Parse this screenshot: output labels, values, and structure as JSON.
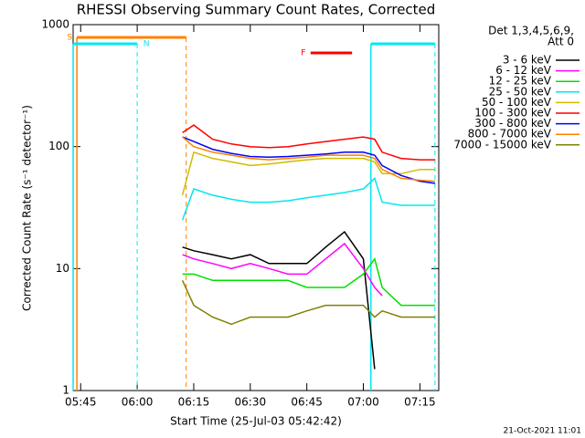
{
  "chart_data": {
    "type": "line",
    "title": "RHESSI Observing Summary Count Rates, Corrected",
    "x_label": "Start Time (25-Jul-03 05:42:42)",
    "y_label": "Corrected Count Rate (s⁻¹ detector⁻¹)",
    "legend_title": [
      "Det 1,3,4,5,6,9,",
      "Att 0"
    ],
    "footer": "21-Oct-2021 11:01",
    "log_y": true,
    "legend": "outside-right",
    "xlim": [
      "05:43",
      "07:20"
    ],
    "xticks": [
      "05:45",
      "06:00",
      "06:15",
      "06:30",
      "06:45",
      "07:00",
      "07:15"
    ],
    "ylim": [
      1,
      1000
    ],
    "yticks": [
      1,
      10,
      100,
      1000
    ],
    "x": [
      "06:12",
      "06:15",
      "06:20",
      "06:25",
      "06:30",
      "06:35",
      "06:40",
      "06:45",
      "06:50",
      "06:55",
      "07:00",
      "07:03",
      "07:05",
      "07:10",
      "07:15",
      "07:19"
    ],
    "series": [
      {
        "name": "3 - 6 keV",
        "color": "#000000",
        "values": [
          15,
          14,
          13,
          12,
          13,
          11,
          11,
          11,
          15,
          20,
          12,
          1.5,
          null,
          null,
          null,
          null
        ]
      },
      {
        "name": "6 - 12 keV",
        "color": "#ff00ff",
        "values": [
          13,
          12,
          11,
          10,
          11,
          10,
          9,
          9,
          12,
          16,
          10,
          7,
          6,
          null,
          null,
          null
        ]
      },
      {
        "name": "12 - 25 keV",
        "color": "#00e000",
        "values": [
          9,
          9,
          8,
          8,
          8,
          8,
          8,
          7,
          7,
          7,
          9,
          12,
          7,
          5,
          5,
          5
        ]
      },
      {
        "name": "25 - 50 keV",
        "color": "#00e8f0",
        "values": [
          25,
          45,
          40,
          37,
          35,
          35,
          36,
          38,
          40,
          42,
          45,
          55,
          35,
          33,
          33,
          33
        ]
      },
      {
        "name": "50 - 100 keV",
        "color": "#d0bc00",
        "values": [
          40,
          90,
          80,
          75,
          70,
          72,
          75,
          78,
          80,
          80,
          80,
          75,
          60,
          60,
          65,
          65
        ]
      },
      {
        "name": "100 - 300 keV",
        "color": "#ff0000",
        "values": [
          130,
          150,
          115,
          105,
          100,
          98,
          100,
          105,
          110,
          115,
          120,
          115,
          90,
          80,
          78,
          78
        ]
      },
      {
        "name": "300 - 800 keV",
        "color": "#0000ff",
        "values": [
          120,
          110,
          95,
          88,
          83,
          82,
          83,
          85,
          87,
          90,
          90,
          85,
          70,
          58,
          52,
          50
        ]
      },
      {
        "name": "800 - 7000 keV",
        "color": "#ff8000",
        "values": [
          120,
          100,
          90,
          85,
          80,
          78,
          80,
          82,
          85,
          85,
          85,
          80,
          65,
          55,
          53,
          52
        ]
      },
      {
        "name": "7000 - 15000 keV",
        "color": "#808000",
        "values": [
          8,
          5,
          4,
          3.5,
          4,
          4,
          4,
          4.5,
          5,
          5,
          5,
          4,
          4.5,
          4,
          4,
          4
        ]
      }
    ],
    "intervals": [
      {
        "label": "S",
        "color": "#ff8000",
        "start": "05:44",
        "end": "06:13",
        "lines": true
      },
      {
        "label": "N",
        "color": "#00e8f0",
        "start": "05:43",
        "end": "06:00",
        "lines": true
      },
      {
        "label": null,
        "color": "#00e8f0",
        "start": "07:02",
        "end": "07:19",
        "lines": true
      },
      {
        "label": "F",
        "color": "#ff0000",
        "start": "06:46",
        "end": "06:57",
        "lines": false
      }
    ]
  }
}
